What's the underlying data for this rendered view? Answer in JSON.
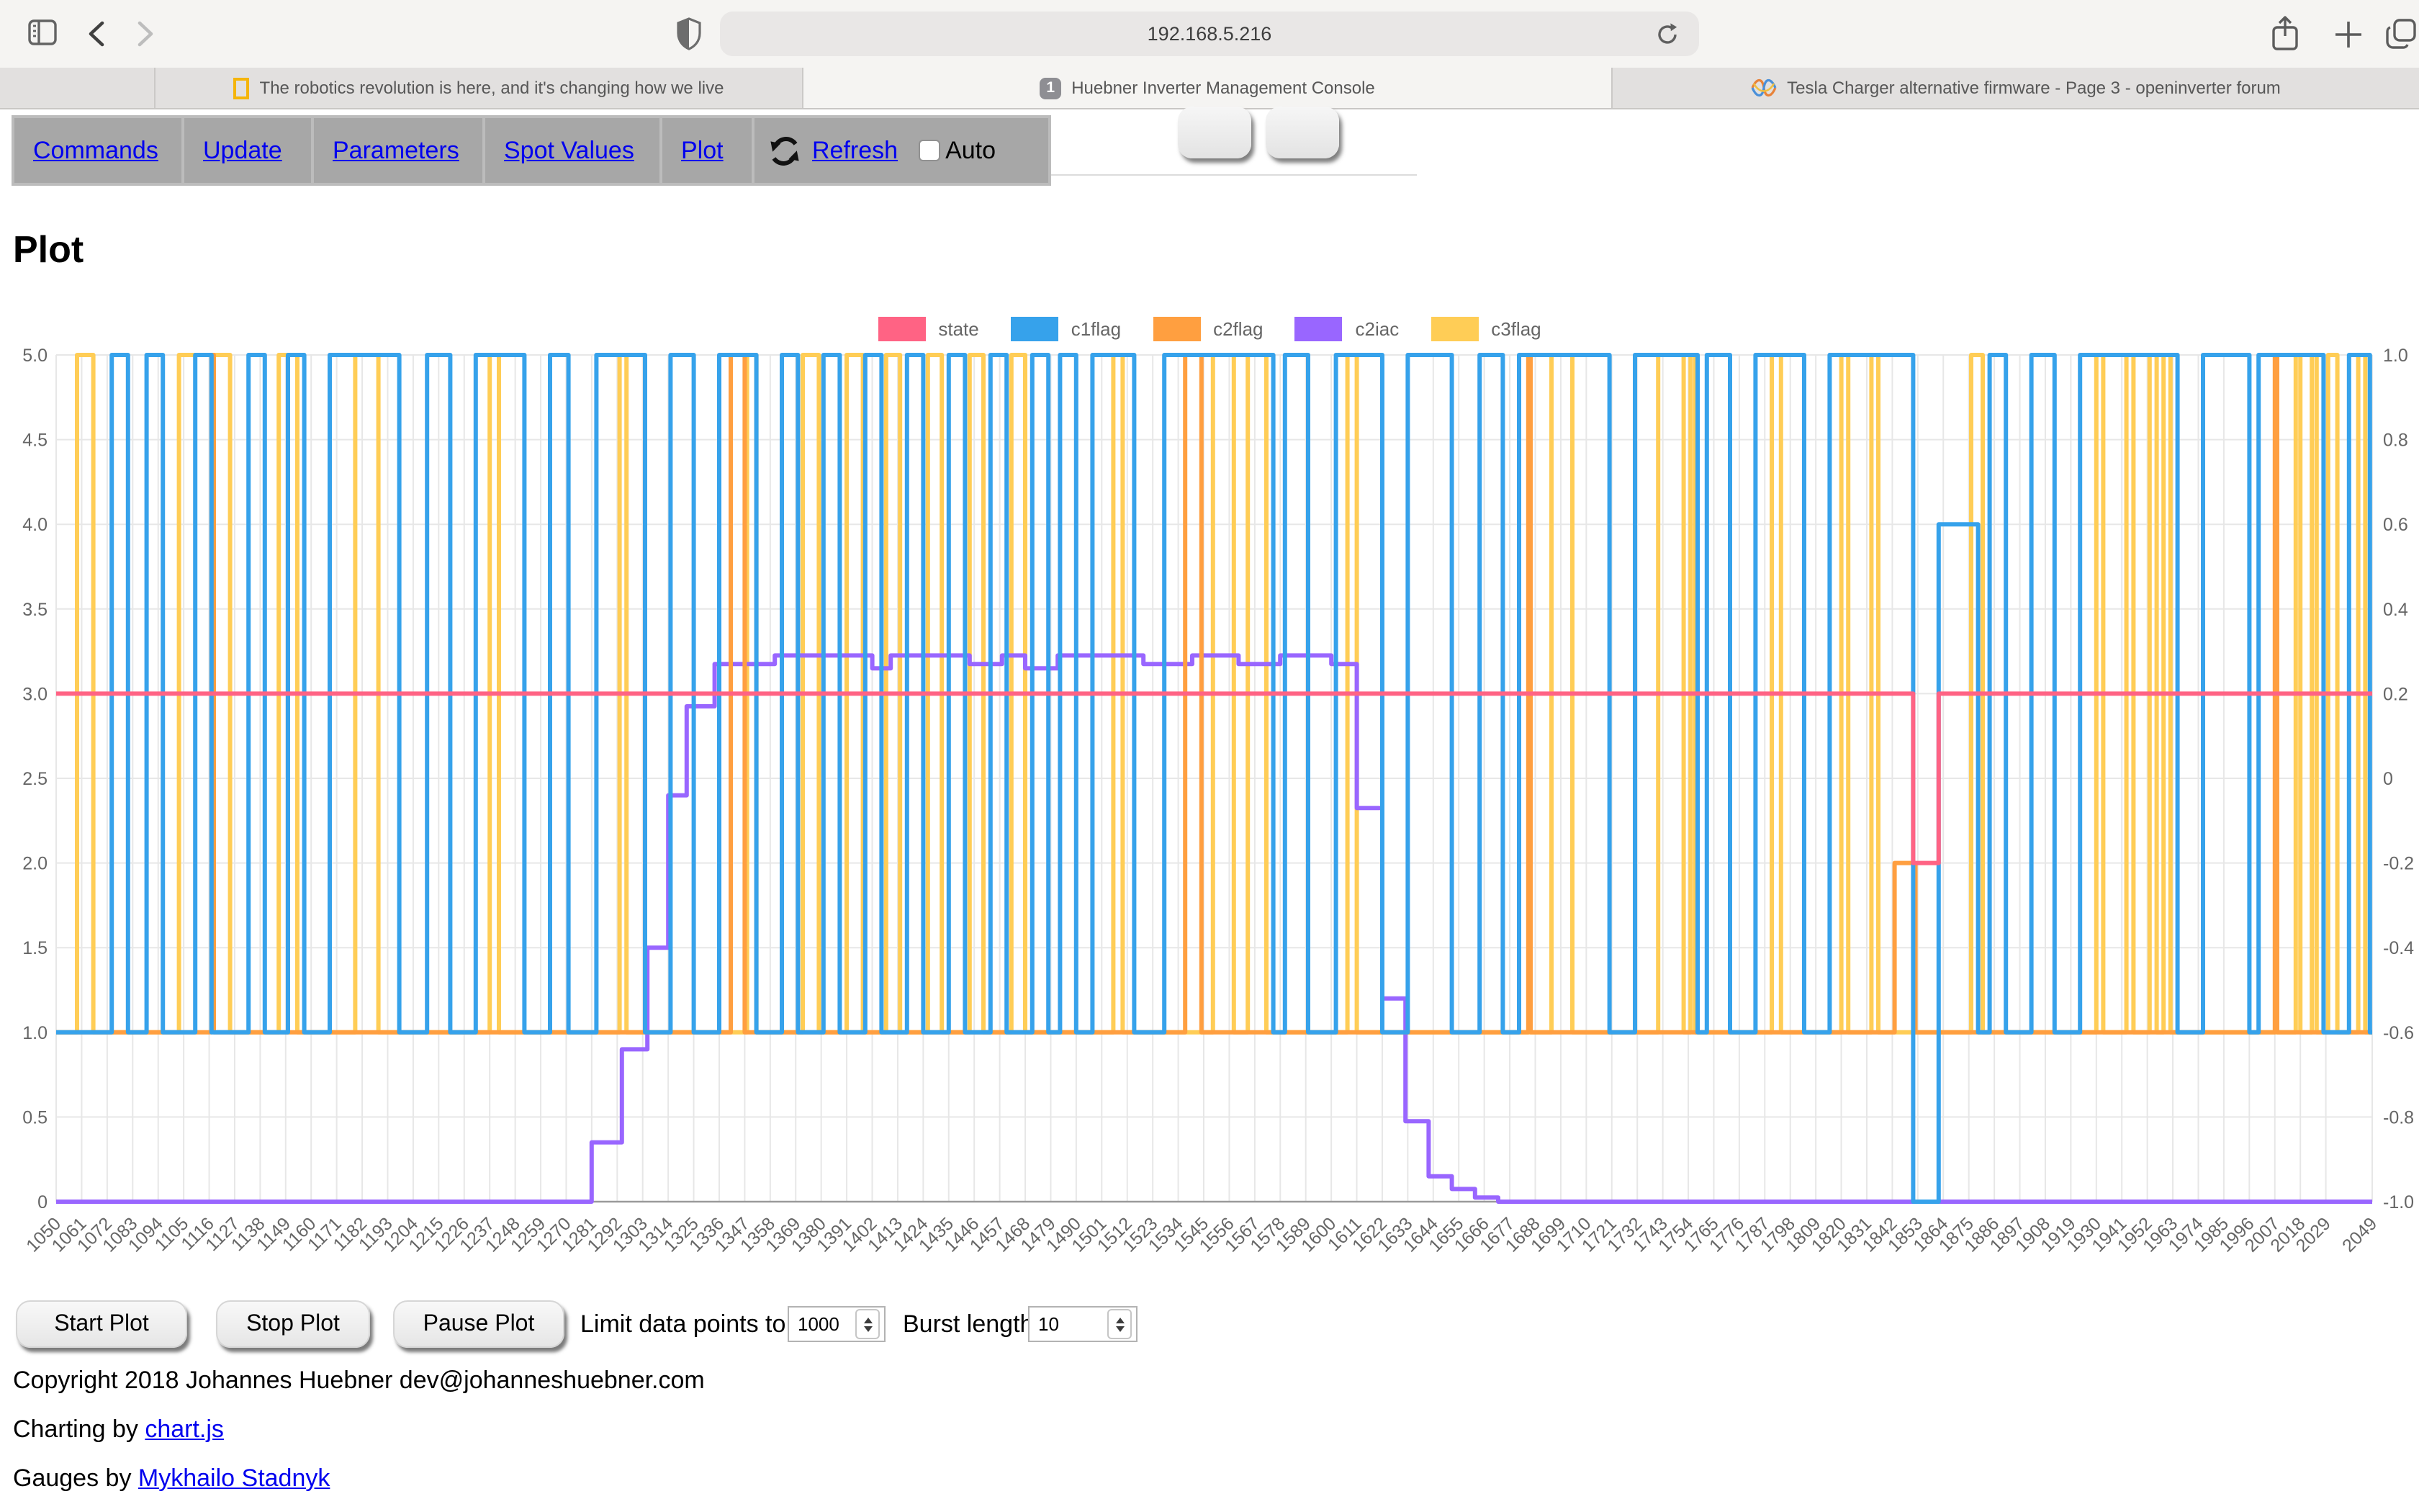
{
  "browser": {
    "url": "192.168.5.216",
    "icons": [
      "sidebar-icon",
      "back-icon",
      "forward-icon",
      "shield-icon",
      "reload-icon",
      "share-icon",
      "new-tab-icon",
      "tab-overview-icon"
    ],
    "tabs": [
      {
        "title": "The robotics revolution is here, and it's changing how we live",
        "favicon": "yellow-rectangle-logo",
        "active": false
      },
      {
        "title": "Huebner Inverter Management Console",
        "favicon": "numbered-1-badge",
        "active": true
      },
      {
        "title": "Tesla Charger alternative firmware - Page 3 - openinverter forum",
        "favicon": "openinverter-waves-logo",
        "active": false
      }
    ]
  },
  "nav": {
    "links": [
      "Commands",
      "Update",
      "Parameters",
      "Spot Values",
      "Plot"
    ],
    "refresh_label": "Refresh",
    "auto_label": "Auto"
  },
  "page": {
    "title": "Plot"
  },
  "chart_data": {
    "type": "line",
    "stepped": true,
    "grid": true,
    "legend_position": "top-center",
    "x_range": [
      1050,
      2049
    ],
    "x_ticks": [
      1050,
      1061,
      1072,
      1083,
      1094,
      1105,
      1116,
      1127,
      1138,
      1149,
      1160,
      1171,
      1182,
      1193,
      1204,
      1215,
      1226,
      1237,
      1248,
      1259,
      1270,
      1281,
      1292,
      1303,
      1314,
      1325,
      1336,
      1347,
      1358,
      1369,
      1380,
      1391,
      1402,
      1413,
      1424,
      1435,
      1446,
      1457,
      1468,
      1479,
      1490,
      1501,
      1512,
      1523,
      1534,
      1545,
      1556,
      1567,
      1578,
      1589,
      1600,
      1611,
      1622,
      1633,
      1644,
      1655,
      1666,
      1677,
      1688,
      1699,
      1710,
      1721,
      1732,
      1743,
      1754,
      1765,
      1776,
      1787,
      1798,
      1809,
      1820,
      1831,
      1842,
      1853,
      1864,
      1875,
      1886,
      1897,
      1908,
      1919,
      1930,
      1941,
      1952,
      1963,
      1974,
      1985,
      1996,
      2007,
      2018,
      2029,
      2049
    ],
    "left_axis": {
      "min": 0,
      "max": 5,
      "ticks": [
        "5.0",
        "4.5",
        "4.0",
        "3.5",
        "3.0",
        "2.5",
        "2.0",
        "1.5",
        "1.0",
        "0.5",
        "0"
      ]
    },
    "right_axis": {
      "min": -1,
      "max": 1,
      "ticks": [
        "1.0",
        "0.8",
        "0.6",
        "0.4",
        "0.2",
        "0",
        "-0.2",
        "-0.4",
        "-0.6",
        "-0.8",
        "-1.0"
      ]
    },
    "legend": [
      {
        "label": "state",
        "color": "#ff6384"
      },
      {
        "label": "c1flag",
        "color": "#36a2eb"
      },
      {
        "label": "c2flag",
        "color": "#ff9f40"
      },
      {
        "label": "c2iac",
        "color": "#9966ff"
      },
      {
        "label": "c3flag",
        "color": "#ffcd56"
      }
    ],
    "series": [
      {
        "name": "state",
        "color": "#ff6384",
        "axis": "left",
        "points": [
          [
            1050,
            3
          ],
          [
            1851,
            2
          ],
          [
            1862,
            3
          ]
        ]
      },
      {
        "name": "c1flag",
        "color": "#36a2eb",
        "axis": "left",
        "points": [
          [
            1050,
            1
          ],
          [
            1074,
            5
          ],
          [
            1081,
            1
          ],
          [
            1089,
            5
          ],
          [
            1096,
            1
          ],
          [
            1110,
            5
          ],
          [
            1117,
            1
          ],
          [
            1133,
            5
          ],
          [
            1140,
            1
          ],
          [
            1150,
            5
          ],
          [
            1157,
            1
          ],
          [
            1168,
            5
          ],
          [
            1198,
            1
          ],
          [
            1210,
            5
          ],
          [
            1220,
            1
          ],
          [
            1231,
            5
          ],
          [
            1252,
            1
          ],
          [
            1263,
            5
          ],
          [
            1271,
            1
          ],
          [
            1283,
            5
          ],
          [
            1304,
            1
          ],
          [
            1315,
            5
          ],
          [
            1325,
            1
          ],
          [
            1336,
            5
          ],
          [
            1352,
            1
          ],
          [
            1363,
            5
          ],
          [
            1370,
            1
          ],
          [
            1381,
            5
          ],
          [
            1388,
            1
          ],
          [
            1399,
            5
          ],
          [
            1406,
            1
          ],
          [
            1417,
            5
          ],
          [
            1424,
            1
          ],
          [
            1435,
            5
          ],
          [
            1442,
            1
          ],
          [
            1453,
            5
          ],
          [
            1460,
            1
          ],
          [
            1471,
            5
          ],
          [
            1478,
            1
          ],
          [
            1483,
            5
          ],
          [
            1490,
            1
          ],
          [
            1497,
            5
          ],
          [
            1515,
            1
          ],
          [
            1528,
            5
          ],
          [
            1575,
            1
          ],
          [
            1580,
            5
          ],
          [
            1590,
            1
          ],
          [
            1602,
            5
          ],
          [
            1622,
            1
          ],
          [
            1633,
            5
          ],
          [
            1652,
            1
          ],
          [
            1664,
            5
          ],
          [
            1674,
            1
          ],
          [
            1681,
            5
          ],
          [
            1720,
            1
          ],
          [
            1731,
            5
          ],
          [
            1758,
            1
          ],
          [
            1762,
            5
          ],
          [
            1772,
            1
          ],
          [
            1783,
            5
          ],
          [
            1804,
            1
          ],
          [
            1815,
            5
          ],
          [
            1851,
            0
          ],
          [
            1862,
            4
          ],
          [
            1879,
            1
          ],
          [
            1884,
            5
          ],
          [
            1891,
            1
          ],
          [
            1902,
            5
          ],
          [
            1912,
            1
          ],
          [
            1923,
            5
          ],
          [
            1965,
            1
          ],
          [
            1976,
            5
          ],
          [
            1996,
            1
          ],
          [
            2000,
            5
          ],
          [
            2028,
            1
          ],
          [
            2039,
            5
          ],
          [
            2048,
            1
          ]
        ]
      },
      {
        "name": "c2flag",
        "color": "#ff9f40",
        "axis": "left",
        "points": [
          [
            1050,
            1
          ],
          [
            1117,
            5
          ],
          [
            1118,
            1
          ],
          [
            1341,
            5
          ],
          [
            1347,
            1
          ],
          [
            1537,
            5
          ],
          [
            1544,
            1
          ],
          [
            1685,
            5
          ],
          [
            1686,
            1
          ],
          [
            1843,
            2
          ],
          [
            1852,
            1
          ],
          [
            2007,
            5
          ],
          [
            2008,
            1
          ]
        ]
      },
      {
        "name": "c2iac",
        "color": "#9966ff",
        "axis": "right",
        "points": [
          [
            1050,
            -1.0
          ],
          [
            1281,
            -0.86
          ],
          [
            1294,
            -0.64
          ],
          [
            1305,
            -0.4
          ],
          [
            1314,
            -0.04
          ],
          [
            1322,
            0.17
          ],
          [
            1334,
            0.27
          ],
          [
            1360,
            0.29
          ],
          [
            1402,
            0.26
          ],
          [
            1410,
            0.29
          ],
          [
            1444,
            0.27
          ],
          [
            1458,
            0.29
          ],
          [
            1468,
            0.26
          ],
          [
            1482,
            0.29
          ],
          [
            1519,
            0.27
          ],
          [
            1540,
            0.29
          ],
          [
            1560,
            0.27
          ],
          [
            1578,
            0.29
          ],
          [
            1600,
            0.27
          ],
          [
            1611,
            -0.07
          ],
          [
            1622,
            -0.52
          ],
          [
            1632,
            -0.81
          ],
          [
            1642,
            -0.94
          ],
          [
            1652,
            -0.97
          ],
          [
            1662,
            -0.99
          ],
          [
            1672,
            -1.0
          ]
        ]
      },
      {
        "name": "c3flag",
        "color": "#ffcd56",
        "axis": "left",
        "points": [
          [
            1050,
            1
          ],
          [
            1059,
            5
          ],
          [
            1066,
            1
          ],
          [
            1103,
            5
          ],
          [
            1125,
            1
          ],
          [
            1146,
            5
          ],
          [
            1154,
            1
          ],
          [
            1179,
            5
          ],
          [
            1189,
            1
          ],
          [
            1237,
            5
          ],
          [
            1241,
            1
          ],
          [
            1293,
            5
          ],
          [
            1296,
            1
          ],
          [
            1348,
            5
          ],
          [
            1352,
            1
          ],
          [
            1372,
            5
          ],
          [
            1379,
            1
          ],
          [
            1391,
            5
          ],
          [
            1398,
            1
          ],
          [
            1408,
            5
          ],
          [
            1414,
            1
          ],
          [
            1426,
            5
          ],
          [
            1432,
            1
          ],
          [
            1444,
            5
          ],
          [
            1450,
            1
          ],
          [
            1462,
            5
          ],
          [
            1468,
            1
          ],
          [
            1506,
            5
          ],
          [
            1510,
            1
          ],
          [
            1549,
            5
          ],
          [
            1558,
            1
          ],
          [
            1564,
            5
          ],
          [
            1572,
            1
          ],
          [
            1607,
            5
          ],
          [
            1611,
            1
          ],
          [
            1695,
            5
          ],
          [
            1704,
            1
          ],
          [
            1741,
            5
          ],
          [
            1752,
            1
          ],
          [
            1755,
            5
          ],
          [
            1757,
            1
          ],
          [
            1790,
            5
          ],
          [
            1794,
            1
          ],
          [
            1820,
            5
          ],
          [
            1823,
            1
          ],
          [
            1833,
            5
          ],
          [
            1836,
            1
          ],
          [
            1876,
            5
          ],
          [
            1881,
            1
          ],
          [
            1930,
            5
          ],
          [
            1933,
            1
          ],
          [
            1943,
            5
          ],
          [
            1946,
            1
          ],
          [
            1953,
            5
          ],
          [
            1956,
            1
          ],
          [
            1959,
            5
          ],
          [
            1962,
            1
          ],
          [
            2016,
            5
          ],
          [
            2018,
            1
          ],
          [
            2023,
            5
          ],
          [
            2025,
            1
          ],
          [
            2030,
            5
          ],
          [
            2034,
            1
          ],
          [
            2043,
            5
          ],
          [
            2046,
            1
          ]
        ]
      }
    ]
  },
  "controls": {
    "start": "Start Plot",
    "stop": "Stop Plot",
    "pause": "Pause Plot",
    "limit_label": "Limit data points to:",
    "limit_value": "1000",
    "burst_label": "Burst length:",
    "burst_value": "10"
  },
  "footer": {
    "copyright": "Copyright 2018 Johannes Huebner dev@johanneshuebner.com",
    "charting_prefix": "Charting by ",
    "charting_link": "chart.js",
    "gauges_prefix": "Gauges by ",
    "gauges_link": "Mykhailo Stadnyk"
  }
}
